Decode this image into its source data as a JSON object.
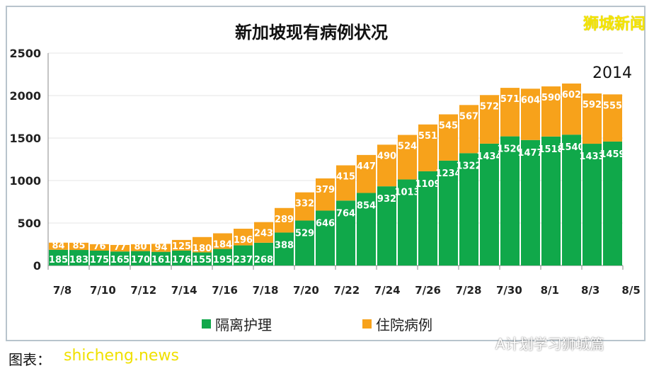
{
  "header": {
    "title": "新加坡现有病例状况",
    "watermark": "狮城新闻"
  },
  "footer": {
    "caption": "图表：",
    "site_watermark": "shicheng.news",
    "account": "A计划学习狮城篇"
  },
  "colors": {
    "green": "#10a84a",
    "orange": "#f7a21b"
  },
  "chart_data": {
    "type": "bar",
    "stacked": true,
    "title": "新加坡现有病例状况",
    "categories": [
      "7/8",
      "7/9",
      "7/10",
      "7/11",
      "7/12",
      "7/13",
      "7/14",
      "7/15",
      "7/16",
      "7/17",
      "7/18",
      "7/19",
      "7/20",
      "7/21",
      "7/22",
      "7/23",
      "7/24",
      "7/25",
      "7/26",
      "7/27",
      "7/28",
      "7/29",
      "7/30",
      "7/31",
      "8/1",
      "8/2",
      "8/3",
      "8/4"
    ],
    "xtick_labels": [
      "7/8",
      "7/10",
      "7/12",
      "7/14",
      "7/16",
      "7/18",
      "7/20",
      "7/22",
      "7/24",
      "7/26",
      "7/28",
      "7/30",
      "8/1",
      "8/3",
      "8/5"
    ],
    "yticks": [
      0,
      500,
      1000,
      1500,
      2000,
      2500
    ],
    "ylim": [
      0,
      2500
    ],
    "grid": true,
    "legend": "bottom",
    "series": [
      {
        "name": "隔离护理",
        "color": "#10a84a",
        "values": [
          185,
          183,
          175,
          165,
          170,
          161,
          176,
          155,
          195,
          237,
          268,
          388,
          529,
          646,
          764,
          854,
          932,
          1013,
          1109,
          1234,
          1322,
          1434,
          1520,
          1477,
          1518,
          1540,
          1433,
          1459
        ]
      },
      {
        "name": "住院病例",
        "color": "#f7a21b",
        "values": [
          84,
          85,
          76,
          77,
          80,
          94,
          125,
          180,
          184,
          196,
          243,
          289,
          332,
          379,
          415,
          447,
          490,
          524,
          551,
          545,
          567,
          572,
          571,
          604,
          590,
          602,
          592,
          555
        ]
      }
    ],
    "annotations": [
      {
        "text": "2014"
      }
    ]
  }
}
